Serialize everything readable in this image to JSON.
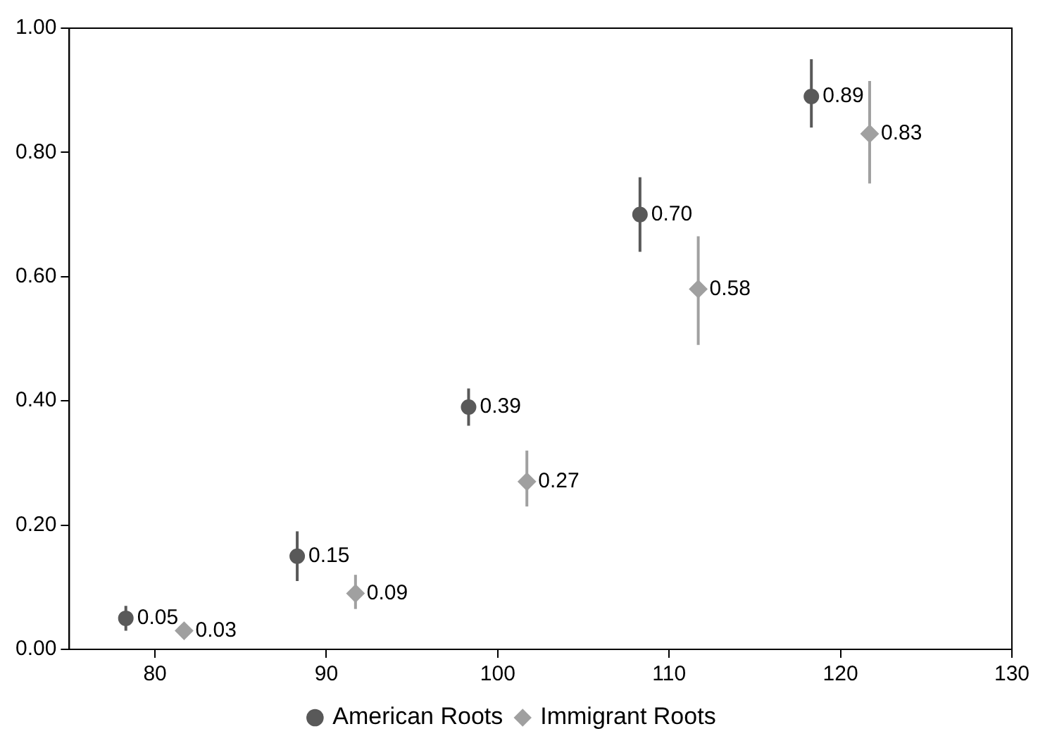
{
  "chart_data": {
    "type": "scatter",
    "xlim": [
      75,
      130
    ],
    "xticks": [
      80,
      90,
      100,
      110,
      120,
      130
    ],
    "ylim": [
      0,
      1
    ],
    "yticks": [
      {
        "value": 0,
        "label": "0.00"
      },
      {
        "value": 0.2,
        "label": "0.20"
      },
      {
        "value": 0.4,
        "label": "0.40"
      },
      {
        "value": 0.6,
        "label": "0.60"
      },
      {
        "value": 0.8,
        "label": "0.80"
      },
      {
        "value": 1,
        "label": "1.00"
      }
    ],
    "legend": "bottom",
    "series": [
      {
        "name": "American Roots",
        "color": "#595959",
        "marker": "circle",
        "x": [
          78.3,
          88.3,
          98.3,
          108.3,
          118.3
        ],
        "values": [
          0.05,
          0.15,
          0.39,
          0.7,
          0.89
        ],
        "value_labels": [
          "0.05",
          "0.15",
          "0.39",
          "0.70",
          "0.89"
        ],
        "errors": [
          [
            0.03,
            0.07
          ],
          [
            0.11,
            0.19
          ],
          [
            0.36,
            0.42
          ],
          [
            0.64,
            0.76
          ],
          [
            0.84,
            0.95
          ]
        ]
      },
      {
        "name": "Immigrant Roots",
        "color": "#a0a0a0",
        "marker": "diamond",
        "x": [
          81.7,
          91.7,
          101.7,
          111.7,
          121.7
        ],
        "values": [
          0.03,
          0.09,
          0.27,
          0.58,
          0.83
        ],
        "value_labels": [
          "0.03",
          "0.09",
          "0.27",
          "0.58",
          "0.83"
        ],
        "errors": [
          [
            0.02,
            0.04
          ],
          [
            0.065,
            0.12
          ],
          [
            0.23,
            0.32
          ],
          [
            0.49,
            0.665
          ],
          [
            0.75,
            0.915
          ]
        ]
      }
    ]
  }
}
